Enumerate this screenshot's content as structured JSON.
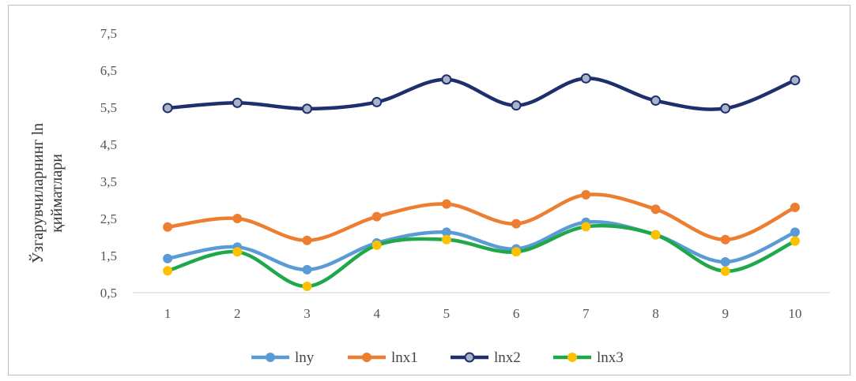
{
  "chart_data": {
    "type": "line",
    "title": "",
    "xlabel": "",
    "ylabel_lines": [
      "Ўзгарувчиларнинг ln",
      "қийматлари"
    ],
    "categories": [
      "1",
      "2",
      "3",
      "4",
      "5",
      "6",
      "7",
      "8",
      "9",
      "10"
    ],
    "y_ticks": [
      "0,5",
      "1,5",
      "2,5",
      "3,5",
      "4,5",
      "5,5",
      "6,5",
      "7,5"
    ],
    "ylim": [
      0.5,
      7.5
    ],
    "grid": false,
    "smooth": true,
    "legend_position": "bottom",
    "series": [
      {
        "name": "lny",
        "color": "#5b9bd5",
        "marker_fill": "#5b9bd5",
        "values": [
          1.42,
          1.73,
          1.12,
          1.84,
          2.13,
          1.68,
          2.4,
          2.06,
          1.33,
          2.13
        ]
      },
      {
        "name": "lnx1",
        "color": "#ed7d31",
        "marker_fill": "#ed7d31",
        "values": [
          2.27,
          2.5,
          1.91,
          2.55,
          2.89,
          2.36,
          3.14,
          2.75,
          1.93,
          2.8
        ]
      },
      {
        "name": "lnx2",
        "color": "#1f2f6e",
        "marker_fill": "#a9b4c9",
        "values": [
          5.48,
          5.62,
          5.46,
          5.64,
          6.25,
          5.55,
          6.28,
          5.68,
          5.47,
          6.23
        ]
      },
      {
        "name": "lnx3",
        "color": "#1fa84a",
        "marker_fill": "#ffc000",
        "values": [
          1.09,
          1.6,
          0.67,
          1.78,
          1.93,
          1.6,
          2.28,
          2.06,
          1.08,
          1.89
        ]
      }
    ]
  }
}
